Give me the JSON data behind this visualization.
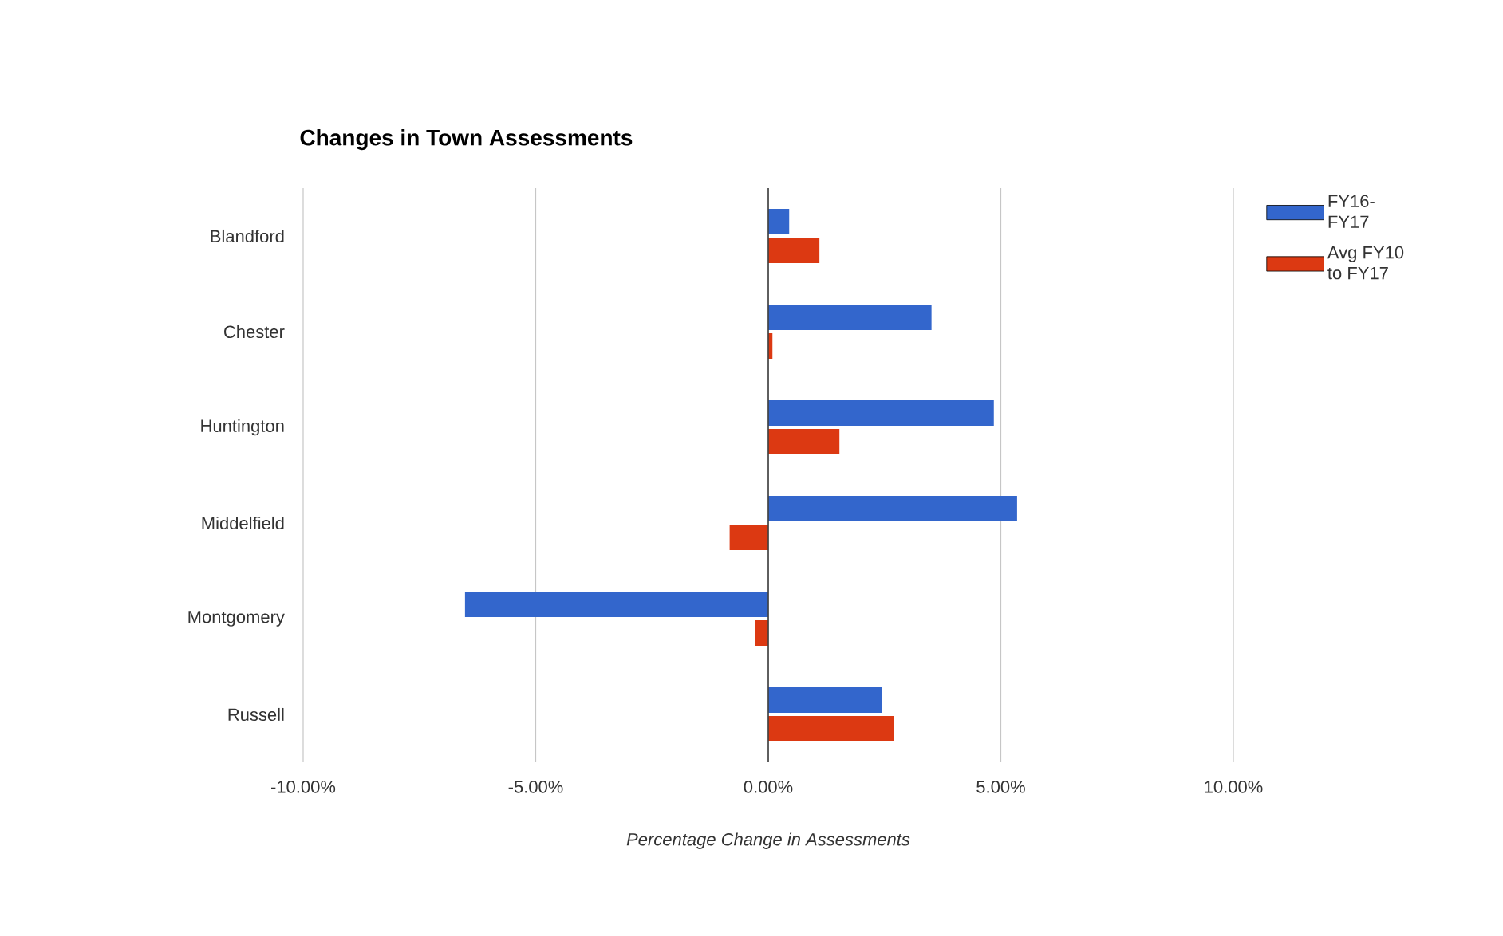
{
  "chart_data": {
    "type": "bar",
    "orientation": "horizontal",
    "title": "Changes in Town Assessments",
    "xlabel": "Percentage Change in Assessments",
    "categories": [
      "Blandford",
      "Chester",
      "Huntington",
      "Middelfield",
      "Montgomery",
      "Russell"
    ],
    "series": [
      {
        "name": "FY16-FY17",
        "color": "#3366cc",
        "values": [
          0.45,
          3.51,
          4.85,
          5.35,
          -6.52,
          2.44
        ]
      },
      {
        "name": "Avg FY10 to FY17",
        "color": "#dc3912",
        "values": [
          1.1,
          0.09,
          1.53,
          -0.83,
          -0.29,
          2.71
        ]
      }
    ],
    "xlim": [
      -10,
      10
    ],
    "xticks": [
      {
        "value": -10,
        "label": "-10.00%"
      },
      {
        "value": -5,
        "label": "-5.00%"
      },
      {
        "value": 0,
        "label": "0.00%"
      },
      {
        "value": 5,
        "label": "5.00%"
      },
      {
        "value": 10,
        "label": "10.00%"
      }
    ],
    "grid": "x",
    "legend": "top right"
  }
}
